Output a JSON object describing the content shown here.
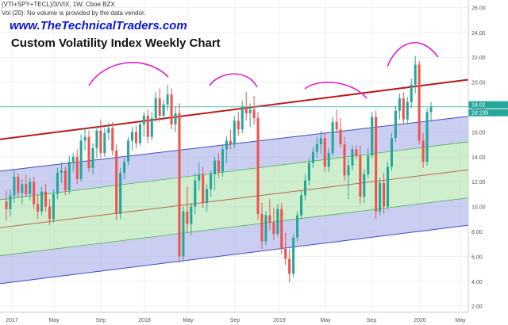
{
  "header": {
    "symbol_line": "(VTI+SPY+TECL)/3/VIX, 1W, Cboe BZX",
    "volume_line": "Vol (20): No volume is provided by the data vendor.",
    "website": "www.TheTechnicalTraders.com",
    "title": "Custom Volatility Index Weekly Chart"
  },
  "price_badges": {
    "last": "18.02",
    "countdown": "2d 23h"
  },
  "chart_data": {
    "type": "candlestick",
    "yticks": [
      "26.00",
      "24.00",
      "22.00",
      "20.00",
      "18.00",
      "16.00",
      "14.00",
      "12.00",
      "10.00",
      "8.00",
      "6.00",
      "4.00",
      "2.00"
    ],
    "ylim": [
      1.5,
      26.6
    ],
    "xticks": [
      "2017",
      "May",
      "Sep",
      "2018",
      "May",
      "Sep",
      "2019",
      "May",
      "Sep",
      "2020",
      "May"
    ],
    "grid": true,
    "colors": {
      "up": "#26a69a",
      "down": "#ef5350",
      "resistance": "#b71c1c",
      "mid": "#c0634a",
      "outer_band_fill": "#9fa8e8",
      "inner_band_fill": "#a5e0a6",
      "arc": "#e020c8",
      "hline": "#4db6ac",
      "badge": "#26a69a"
    },
    "channel_lines": [
      {
        "name": "resistance",
        "y_start": 15.4,
        "y_end": 20.2
      },
      {
        "name": "upper",
        "y_start": 12.85,
        "y_end": 17.25
      },
      {
        "name": "upper-inner",
        "y_start": 10.55,
        "y_end": 15.2
      },
      {
        "name": "mid",
        "y_start": 8.3,
        "y_end": 12.95
      },
      {
        "name": "lower-inner",
        "y_start": 6.05,
        "y_end": 10.7
      },
      {
        "name": "lower",
        "y_start": 3.8,
        "y_end": 8.5
      }
    ],
    "horizontal_line": 18.02,
    "candles": [
      [
        10.4,
        11.3,
        8.9,
        9.8
      ],
      [
        9.8,
        11.4,
        9.2,
        10.9
      ],
      [
        10.9,
        12.9,
        10.3,
        12.4
      ],
      [
        12.4,
        12.7,
        10.7,
        11.1
      ],
      [
        11.1,
        12.2,
        10.2,
        11.8
      ],
      [
        11.8,
        12.6,
        10.8,
        11.0
      ],
      [
        11.0,
        12.3,
        10.5,
        12.0
      ],
      [
        12.0,
        12.4,
        9.8,
        10.2
      ],
      [
        10.2,
        10.9,
        9.0,
        9.6
      ],
      [
        9.6,
        11.6,
        9.3,
        11.2
      ],
      [
        11.2,
        11.8,
        9.6,
        10.0
      ],
      [
        10.0,
        10.6,
        8.5,
        9.0
      ],
      [
        9.0,
        11.4,
        8.7,
        11.0
      ],
      [
        11.0,
        13.1,
        10.6,
        12.7
      ],
      [
        12.7,
        13.6,
        11.9,
        12.9
      ],
      [
        12.9,
        13.2,
        10.9,
        11.3
      ],
      [
        11.3,
        14.1,
        11.0,
        13.6
      ],
      [
        13.6,
        14.3,
        12.8,
        14.0
      ],
      [
        14.0,
        14.6,
        11.8,
        12.2
      ],
      [
        12.2,
        15.8,
        12.0,
        15.3
      ],
      [
        15.3,
        16.3,
        14.5,
        15.6
      ],
      [
        15.6,
        16.1,
        12.8,
        13.1
      ],
      [
        13.1,
        15.1,
        12.6,
        14.7
      ],
      [
        14.7,
        16.5,
        13.9,
        16.1
      ],
      [
        16.1,
        17.0,
        13.9,
        14.3
      ],
      [
        14.3,
        16.3,
        14.0,
        15.9
      ],
      [
        15.9,
        16.7,
        15.3,
        16.3
      ],
      [
        16.3,
        16.8,
        14.1,
        14.5
      ],
      [
        14.5,
        15.0,
        8.9,
        9.4
      ],
      [
        9.4,
        13.1,
        9.0,
        12.7
      ],
      [
        12.7,
        13.9,
        12.2,
        13.6
      ],
      [
        13.6,
        15.6,
        13.3,
        15.3
      ],
      [
        15.3,
        16.4,
        14.5,
        16.0
      ],
      [
        16.0,
        16.5,
        14.7,
        15.1
      ],
      [
        15.1,
        16.8,
        14.9,
        16.6
      ],
      [
        16.6,
        17.6,
        15.6,
        17.3
      ],
      [
        17.3,
        17.8,
        15.1,
        15.6
      ],
      [
        15.6,
        17.6,
        15.3,
        17.1
      ],
      [
        17.1,
        19.2,
        16.8,
        18.7
      ],
      [
        18.7,
        19.5,
        16.8,
        17.3
      ],
      [
        17.3,
        18.6,
        16.9,
        18.2
      ],
      [
        18.2,
        19.8,
        17.7,
        19.0
      ],
      [
        19.0,
        19.5,
        16.2,
        16.6
      ],
      [
        16.6,
        18.0,
        16.0,
        17.5
      ],
      [
        17.5,
        18.3,
        5.5,
        6.0
      ],
      [
        6.0,
        10.0,
        5.6,
        9.6
      ],
      [
        9.6,
        11.6,
        7.9,
        8.6
      ],
      [
        8.6,
        10.3,
        7.7,
        10.0
      ],
      [
        10.0,
        12.7,
        9.4,
        12.1
      ],
      [
        12.1,
        13.6,
        11.3,
        12.6
      ],
      [
        12.6,
        13.2,
        9.9,
        10.3
      ],
      [
        10.3,
        11.8,
        9.6,
        11.4
      ],
      [
        11.4,
        12.9,
        10.8,
        12.6
      ],
      [
        12.6,
        14.0,
        11.3,
        13.7
      ],
      [
        13.7,
        14.3,
        12.3,
        12.8
      ],
      [
        12.8,
        15.0,
        12.4,
        14.6
      ],
      [
        14.6,
        15.6,
        13.5,
        15.3
      ],
      [
        15.3,
        16.2,
        14.6,
        15.0
      ],
      [
        15.0,
        17.3,
        14.7,
        16.9
      ],
      [
        16.9,
        17.6,
        15.7,
        16.2
      ],
      [
        16.2,
        18.5,
        15.9,
        18.0
      ],
      [
        18.0,
        19.2,
        16.9,
        17.5
      ],
      [
        17.5,
        18.3,
        16.4,
        17.8
      ],
      [
        17.8,
        18.9,
        16.6,
        17.1
      ],
      [
        17.1,
        17.6,
        8.9,
        9.4
      ],
      [
        9.4,
        10.3,
        6.6,
        7.2
      ],
      [
        7.2,
        9.6,
        6.9,
        9.3
      ],
      [
        9.3,
        10.6,
        8.1,
        8.7
      ],
      [
        8.7,
        9.9,
        7.3,
        7.8
      ],
      [
        7.8,
        10.2,
        7.6,
        9.8
      ],
      [
        9.8,
        10.3,
        6.2,
        6.6
      ],
      [
        6.6,
        7.9,
        5.3,
        5.8
      ],
      [
        5.8,
        6.6,
        3.9,
        4.6
      ],
      [
        4.6,
        7.8,
        4.3,
        7.5
      ],
      [
        7.5,
        9.6,
        7.2,
        9.3
      ],
      [
        9.3,
        11.3,
        9.0,
        10.9
      ],
      [
        10.9,
        12.6,
        10.5,
        12.1
      ],
      [
        12.1,
        13.9,
        11.7,
        13.5
      ],
      [
        13.5,
        14.8,
        13.1,
        14.4
      ],
      [
        14.4,
        15.6,
        13.9,
        15.0
      ],
      [
        15.0,
        16.1,
        14.2,
        15.5
      ],
      [
        15.5,
        15.9,
        12.8,
        13.2
      ],
      [
        13.2,
        14.7,
        12.8,
        14.3
      ],
      [
        14.3,
        17.2,
        14.1,
        16.8
      ],
      [
        16.8,
        17.8,
        15.9,
        16.2
      ],
      [
        16.2,
        17.1,
        14.7,
        15.0
      ],
      [
        15.0,
        15.6,
        12.1,
        12.5
      ],
      [
        12.5,
        13.9,
        10.6,
        13.3
      ],
      [
        13.3,
        14.9,
        12.9,
        14.6
      ],
      [
        14.6,
        14.9,
        13.8,
        14.1
      ],
      [
        14.1,
        14.9,
        10.2,
        10.8
      ],
      [
        10.8,
        13.0,
        10.3,
        12.6
      ],
      [
        12.6,
        14.7,
        12.3,
        14.1
      ],
      [
        14.1,
        17.6,
        13.9,
        17.2
      ],
      [
        17.2,
        17.7,
        9.0,
        9.6
      ],
      [
        9.6,
        12.3,
        9.3,
        11.9
      ],
      [
        11.9,
        12.7,
        9.4,
        10.0
      ],
      [
        10.0,
        13.6,
        9.8,
        13.2
      ],
      [
        13.2,
        15.9,
        12.9,
        15.5
      ],
      [
        15.5,
        18.1,
        15.2,
        17.7
      ],
      [
        17.7,
        19.1,
        17.0,
        18.7
      ],
      [
        18.7,
        19.2,
        16.6,
        17.0
      ],
      [
        17.0,
        18.8,
        16.7,
        18.4
      ],
      [
        18.4,
        20.3,
        17.9,
        19.8
      ],
      [
        19.8,
        22.1,
        19.1,
        21.4
      ],
      [
        21.4,
        21.7,
        15.0,
        15.3
      ],
      [
        15.3,
        15.9,
        13.1,
        13.6
      ],
      [
        13.6,
        17.9,
        13.3,
        17.6
      ],
      [
        17.6,
        18.4,
        16.9,
        18.0
      ]
    ]
  }
}
